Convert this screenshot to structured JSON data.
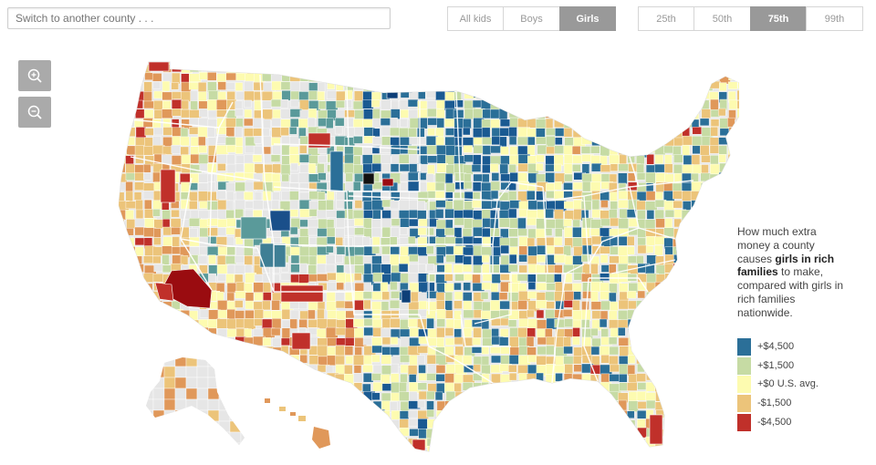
{
  "search": {
    "placeholder": "Switch to another county . . ."
  },
  "gender_toggle": {
    "options": [
      "All kids",
      "Boys",
      "Girls"
    ],
    "selected": "Girls"
  },
  "percentile_toggle": {
    "options": [
      "25th",
      "50th",
      "75th",
      "99th"
    ],
    "selected": "75th"
  },
  "zoom": {
    "in_icon": "zoom-in-icon",
    "out_icon": "zoom-out-icon"
  },
  "legend": {
    "text_before": "How much extra money a county causes ",
    "text_bold": "girls in rich families",
    "text_after": " to make, compared with girls in rich families nationwide.",
    "items": [
      {
        "label": "+$4,500",
        "color": "#2b6f98"
      },
      {
        "label": "+$1,500",
        "color": "#c6dba4"
      },
      {
        "label": "+$0 U.S. avg.",
        "color": "#fdfbb0"
      },
      {
        "label": "-$1,500",
        "color": "#ecc47a"
      },
      {
        "label": "-$4,500",
        "color": "#c0302a"
      }
    ]
  },
  "map": {
    "colors": {
      "deep_blue": "#1a5a92",
      "blue": "#2b6f98",
      "teal": "#5a9a9a",
      "green": "#c6dba4",
      "yellow": "#fdfbb0",
      "tan": "#ecc47a",
      "orange": "#e0985a",
      "red": "#c0302a",
      "deep_red": "#9a0c10",
      "gray": "#e6e6e6",
      "border": "#ffffff"
    }
  }
}
